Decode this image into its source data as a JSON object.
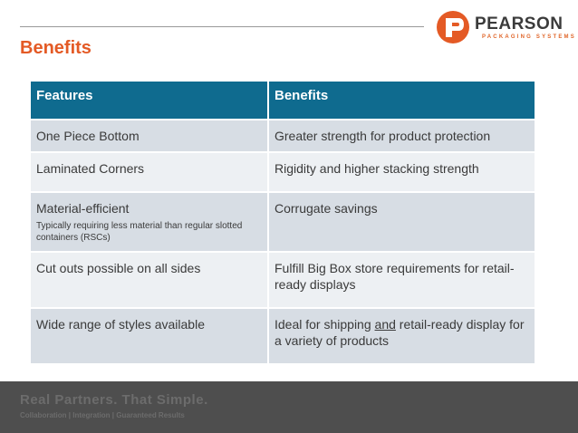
{
  "header": {
    "logo": {
      "name": "PEARSON",
      "subtitle": "PACKAGING SYSTEMS",
      "icon": "pearson-logo-icon",
      "brand_color": "#e45a25"
    }
  },
  "page": {
    "title": "Benefits"
  },
  "table": {
    "header_color": "#0f6b8f",
    "columns": [
      "Features",
      "Benefits"
    ],
    "rows": [
      {
        "feature": "One Piece Bottom",
        "feature_note": "",
        "benefit": "Greater strength for product protection",
        "benefit_underline": "",
        "benefit_rest": ""
      },
      {
        "feature": "Laminated Corners",
        "feature_note": "",
        "benefit": "Rigidity and higher stacking strength",
        "benefit_underline": "",
        "benefit_rest": ""
      },
      {
        "feature": "Material-efficient",
        "feature_note": "Typically requiring less material than regular slotted containers (RSCs)",
        "benefit": "Corrugate savings",
        "benefit_underline": "",
        "benefit_rest": ""
      },
      {
        "feature": "Cut outs possible on all sides",
        "feature_note": "",
        "benefit": "Fulfill Big Box store requirements for retail-ready displays",
        "benefit_underline": "",
        "benefit_rest": ""
      },
      {
        "feature": "Wide range of styles available",
        "feature_note": "",
        "benefit": "Ideal for shipping ",
        "benefit_underline": "and",
        "benefit_rest": " retail-ready display for a variety of products"
      }
    ]
  },
  "footer": {
    "tagline": "Real Partners. That Simple.",
    "subline": "Collaboration | Integration | Guaranteed Results"
  }
}
